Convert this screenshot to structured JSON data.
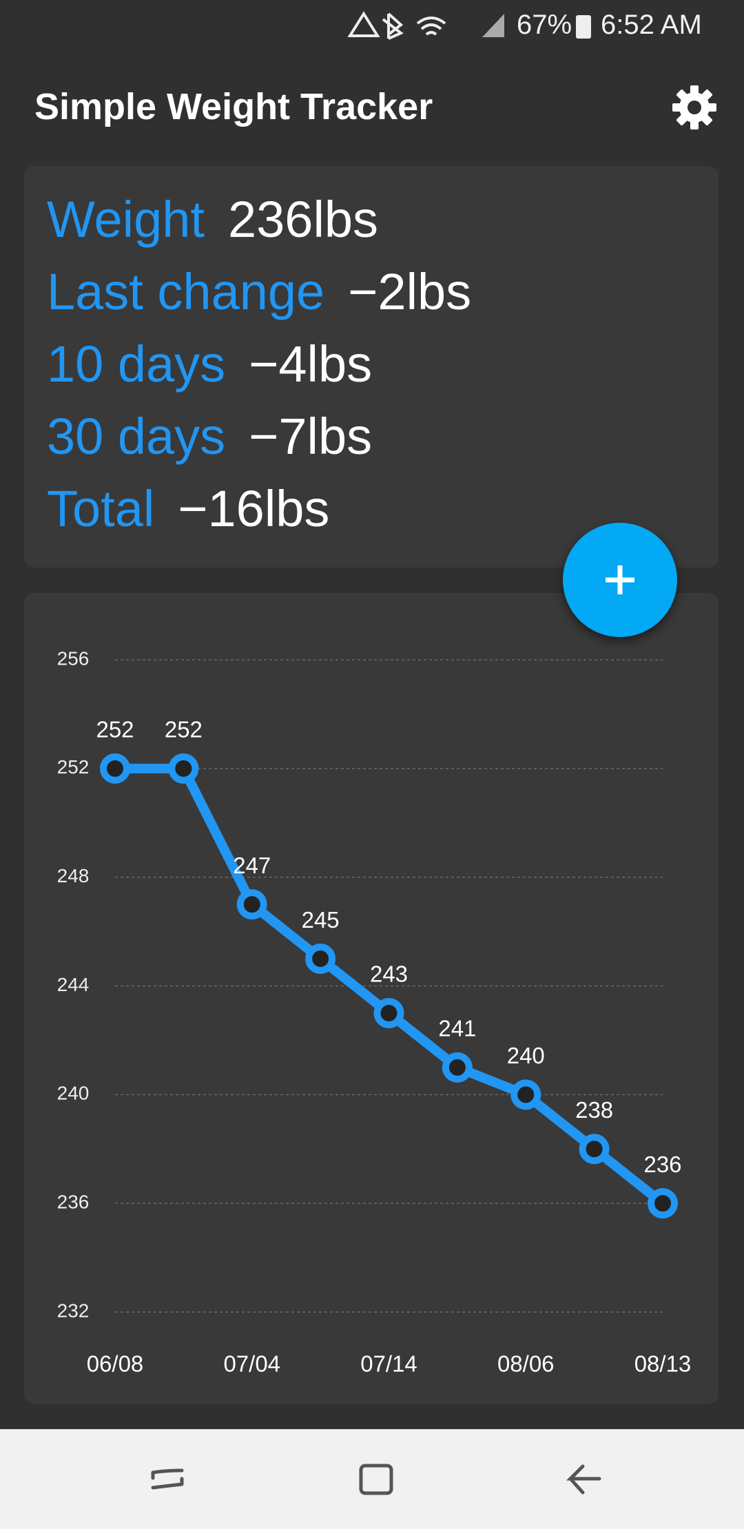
{
  "status_bar": {
    "battery": "67%",
    "time": "6:52 AM"
  },
  "app_bar": {
    "title": "Simple Weight Tracker"
  },
  "stats": [
    {
      "label": "Weight",
      "value": "236lbs"
    },
    {
      "label": "Last change",
      "value": "−2lbs"
    },
    {
      "label": "10 days",
      "value": "−4lbs"
    },
    {
      "label": "30 days",
      "value": "−7lbs"
    },
    {
      "label": "Total",
      "value": "−16lbs"
    }
  ],
  "chart_data": {
    "type": "line",
    "categories": [
      "06/08",
      null,
      "07/04",
      null,
      "07/14",
      null,
      "08/06",
      null,
      "08/13"
    ],
    "values": [
      252,
      252,
      247,
      245,
      243,
      241,
      240,
      238,
      236
    ],
    "color": "#2196f3",
    "ylim": [
      232,
      256
    ],
    "yticks": [
      232,
      236,
      240,
      244,
      248,
      252,
      256
    ],
    "grid": true
  }
}
